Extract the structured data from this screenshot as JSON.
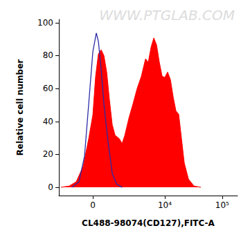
{
  "chart_data": {
    "type": "line",
    "annotations": [
      "WWW.PTGLAB.COM"
    ],
    "x_label": "CL488-98074(CD127),FITC-A",
    "y_label": "Relative cell number",
    "xlim": [
      -2050,
      185000
    ],
    "xticks": [
      0,
      {
        "value": 10000,
        "label": "10⁴"
      },
      {
        "value": 100000,
        "label": "10⁵"
      }
    ],
    "ylim": [
      -5,
      102
    ],
    "yticks": [
      0,
      20,
      40,
      60,
      80,
      100
    ],
    "grid": false,
    "series": [
      {
        "color": "#ff0000",
        "type": "area",
        "x": [
          -1870,
          -1230,
          -805,
          -447,
          -188,
          0,
          125,
          252,
          381,
          516,
          657,
          806,
          965,
          1140,
          1431,
          1641,
          1868,
          2250,
          2690,
          3220,
          3850,
          4570,
          5120,
          5730,
          6410,
          7180,
          8030,
          8980,
          10000,
          11200,
          12560,
          14030,
          15680,
          17530,
          19600,
          21900,
          25900,
          32300,
          42600
        ],
        "values": [
          0,
          0.8,
          3.4,
          12.7,
          29.5,
          44,
          67.5,
          81,
          83.5,
          80,
          70,
          53,
          38,
          31.6,
          29.5,
          26.6,
          31.6,
          42,
          50.6,
          60,
          67.5,
          78,
          76,
          85,
          90.7,
          86.5,
          76,
          67.5,
          66.7,
          70,
          65.4,
          54.9,
          46.4,
          44.3,
          29.5,
          14.8,
          5,
          0.8,
          0
        ]
      },
      {
        "color": "#2b2ba6",
        "type": "line",
        "x": [
          -1050,
          -657,
          -381,
          -188,
          0,
          156,
          252,
          381,
          516,
          729,
          965,
          1230,
          1641
        ],
        "values": [
          0,
          3.4,
          19,
          50.6,
          82.3,
          93.7,
          88.6,
          71.7,
          50.6,
          27.4,
          8.4,
          2.1,
          0
        ]
      }
    ]
  }
}
